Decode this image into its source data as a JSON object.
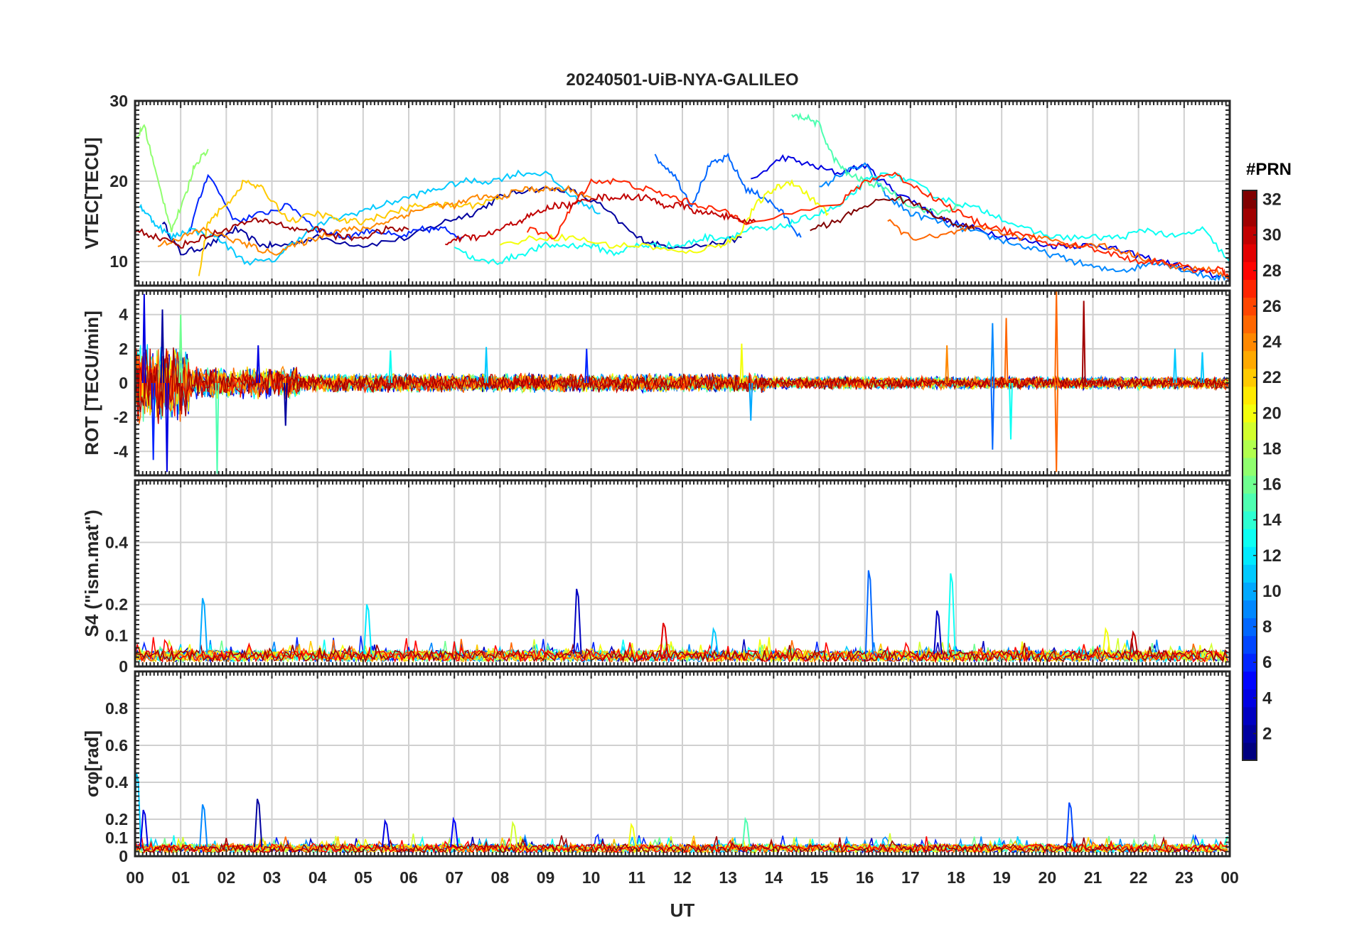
{
  "title": "20240501-UiB-NYA-GALILEO",
  "xlabel": "UT",
  "x_tick_labels": [
    "00",
    "01",
    "02",
    "03",
    "04",
    "05",
    "06",
    "07",
    "08",
    "09",
    "10",
    "11",
    "12",
    "13",
    "14",
    "15",
    "16",
    "17",
    "18",
    "19",
    "20",
    "21",
    "22",
    "23",
    "00"
  ],
  "colorbar": {
    "title": "#PRN",
    "range": [
      1,
      32
    ],
    "tick_labels": [
      "2",
      "4",
      "6",
      "8",
      "10",
      "12",
      "14",
      "16",
      "18",
      "20",
      "22",
      "24",
      "26",
      "28",
      "30",
      "32"
    ],
    "colormap": "jet"
  },
  "chart_data": [
    {
      "type": "line",
      "ylabel": "VTEC[TECU]",
      "xlim": [
        0,
        24
      ],
      "ylim": [
        7,
        30
      ],
      "y_tick_labels": [
        "10",
        "20",
        "30"
      ],
      "series": [
        {
          "prn": 2,
          "x": [
            0.6,
            1.0,
            1.6,
            2.2,
            2.8,
            3.2,
            4.0,
            5.0,
            6.0,
            6.8,
            7.4,
            8.0,
            8.6,
            9.5,
            10.2,
            11.0,
            11.5,
            12.5,
            13.3
          ],
          "y": [
            15,
            11,
            12,
            14,
            12,
            12,
            13,
            12,
            13,
            15,
            16,
            18,
            19,
            19,
            17,
            13,
            12,
            12,
            13
          ]
        },
        {
          "prn": 4,
          "x": [
            13.5,
            14.2,
            14.8,
            15.4,
            16.0,
            16.6,
            17.2,
            17.8,
            18.5,
            19.2,
            20.0,
            20.6,
            21.2,
            21.8,
            22.5,
            23.2,
            23.8
          ],
          "y": [
            20,
            23,
            22,
            21,
            22,
            19,
            17,
            15,
            14,
            13,
            12,
            12,
            12,
            11,
            10,
            9,
            8
          ]
        },
        {
          "prn": 6,
          "x": [
            1.2,
            1.6,
            2.2,
            2.8,
            3.4,
            4.0,
            4.6,
            5.2,
            5.8,
            6.3,
            6.8,
            7.2
          ],
          "y": [
            14,
            21,
            15,
            16,
            17,
            14,
            13,
            14,
            13,
            14,
            14,
            13
          ]
        },
        {
          "prn": 8,
          "x": [
            11.4,
            11.8,
            12.2,
            12.6,
            13.0,
            13.4,
            13.8,
            14.2,
            14.6
          ],
          "y": [
            23,
            21,
            17,
            22,
            23,
            19,
            18,
            16,
            13
          ]
        },
        {
          "prn": 9,
          "x": [
            15.0,
            15.5,
            16.0,
            16.5,
            17.0,
            17.6,
            18.2,
            18.8,
            19.4,
            20.0,
            20.6,
            21.2,
            21.8,
            22.4,
            23.0,
            23.6,
            24.0
          ],
          "y": [
            19,
            21,
            22,
            18,
            16,
            15,
            14,
            13,
            12,
            11,
            10,
            9,
            9,
            10,
            9,
            8,
            8
          ]
        },
        {
          "prn": 11,
          "x": [
            0.1,
            0.4,
            0.8,
            1.2,
            1.8,
            2.4,
            3.0,
            3.6,
            4.2,
            4.8,
            5.4,
            6.0,
            6.6,
            7.2,
            7.8,
            8.4,
            9.0,
            9.6,
            10.2
          ],
          "y": [
            17,
            15,
            13,
            14,
            13,
            10,
            10,
            13,
            15,
            16,
            17,
            18,
            19,
            20,
            20,
            21,
            21,
            18,
            16
          ]
        },
        {
          "prn": 13,
          "x": [
            7.0,
            7.5,
            8.0,
            8.5,
            9.0,
            9.5,
            10.0,
            10.5,
            11.0,
            11.5,
            12.0,
            12.5,
            13.0,
            13.5,
            14.0,
            14.5,
            15.0,
            15.5,
            16.0,
            16.5,
            17.0,
            17.6,
            18.2,
            18.8,
            19.5,
            20.2,
            21.0,
            21.6,
            22.2,
            22.8,
            23.4,
            24.0
          ],
          "y": [
            12,
            10,
            10,
            11,
            12,
            12,
            12,
            11,
            12,
            12,
            12,
            13,
            13,
            14,
            14,
            15,
            16,
            17,
            20,
            21,
            20,
            18,
            17,
            16,
            14,
            13,
            13,
            13,
            14,
            13,
            14,
            10
          ]
        },
        {
          "prn": 15,
          "x": [
            14.4,
            14.7,
            15.0,
            15.3,
            15.6,
            16.0,
            16.5,
            17.0,
            17.6,
            18.1
          ],
          "y": [
            28,
            28,
            27,
            23,
            21,
            20,
            19,
            17,
            16,
            17
          ]
        },
        {
          "prn": 17,
          "x": [
            0.0,
            0.2,
            0.5,
            0.8,
            1.1,
            1.3,
            1.6
          ],
          "y": [
            25,
            27,
            20,
            14,
            18,
            22,
            24
          ]
        },
        {
          "prn": 20,
          "x": [
            8.0,
            8.8,
            9.6,
            10.4,
            11.2,
            12.0,
            12.8,
            13.2,
            13.6,
            14.0,
            14.4,
            14.8,
            15.2
          ],
          "y": [
            12,
            13,
            13,
            12,
            12,
            11,
            12,
            13,
            17,
            19,
            20,
            18,
            16
          ]
        },
        {
          "prn": 22,
          "x": [
            1.4,
            1.6,
            2.0,
            2.4,
            2.8,
            3.4,
            4.0,
            4.6,
            5.0,
            5.6,
            6.2,
            6.8,
            7.4,
            8.0
          ],
          "y": [
            8,
            15,
            17,
            20,
            19,
            15,
            16,
            15,
            15,
            16,
            17,
            17,
            17,
            18
          ]
        },
        {
          "prn": 24,
          "x": [
            0.5,
            1.0,
            1.5,
            2.0,
            2.5,
            3.0,
            3.5,
            4.0,
            4.5,
            5.0,
            5.5,
            6.0,
            6.5,
            7.0,
            7.5,
            8.0,
            8.5,
            9.0,
            9.5,
            10.0
          ],
          "y": [
            12,
            13,
            14,
            13,
            12,
            11,
            12,
            13,
            14,
            14,
            15,
            16,
            17,
            17,
            18,
            18,
            19,
            19,
            19,
            18
          ]
        },
        {
          "prn": 25,
          "x": [
            16.5,
            17.0,
            17.6,
            18.2,
            18.8,
            19.4,
            20.0,
            20.6,
            21.2,
            21.8,
            22.4,
            23.0,
            23.6,
            24.0
          ],
          "y": [
            15,
            13,
            13,
            14,
            14,
            13,
            13,
            12,
            12,
            11,
            10,
            9,
            9,
            8
          ]
        },
        {
          "prn": 27,
          "x": [
            8.6,
            9.2,
            9.6,
            10.0,
            10.6,
            11.2,
            11.8,
            12.4,
            13.0,
            13.4,
            15.4,
            16.0,
            16.6,
            17.2,
            17.8,
            18.4,
            19.0,
            19.6,
            20.2,
            20.8,
            21.4,
            22.0,
            22.6,
            23.2,
            23.8,
            24.0
          ],
          "y": [
            14,
            13,
            17,
            20,
            20,
            19,
            18,
            17,
            16,
            15,
            17,
            20,
            21,
            19,
            17,
            15,
            14,
            13,
            12,
            12,
            11,
            10,
            10,
            9,
            9,
            8
          ]
        },
        {
          "prn": 30,
          "x": [
            6.8,
            7.2,
            7.6,
            8.0,
            8.4,
            8.8,
            9.2,
            9.6,
            10.0,
            10.4,
            10.8,
            11.2,
            11.6,
            12.0,
            12.4,
            12.8,
            13.2,
            13.6
          ],
          "y": [
            12,
            13,
            13,
            14,
            15,
            16,
            17,
            17,
            18,
            18,
            18,
            18,
            17,
            17,
            16,
            16,
            15,
            15
          ]
        },
        {
          "prn": 31,
          "x": [
            0.0,
            0.5,
            1.0,
            1.5,
            2.0,
            2.5,
            3.0,
            3.5,
            4.0,
            4.5,
            5.0,
            5.5,
            6.0
          ],
          "y": [
            14,
            13,
            12,
            13,
            14,
            15,
            15,
            14,
            14,
            13,
            13,
            14,
            14
          ]
        },
        {
          "prn": 32,
          "x": [
            14.8,
            15.4,
            16.0,
            16.6,
            17.2,
            17.8,
            18.4
          ],
          "y": [
            14,
            15,
            17,
            18,
            17,
            15,
            14
          ]
        }
      ]
    },
    {
      "type": "line",
      "ylabel": "ROT [TECU/min]",
      "xlim": [
        0,
        24
      ],
      "ylim": [
        -5.4,
        5.4
      ],
      "y_tick_labels": [
        "-4",
        "-2",
        "0",
        "2",
        "4"
      ],
      "noise_levels": [
        {
          "x_range": [
            0.0,
            1.2
          ],
          "amplitude": 2.5
        },
        {
          "x_range": [
            1.2,
            3.6
          ],
          "amplitude": 1.0
        },
        {
          "x_range": [
            3.6,
            13.8
          ],
          "amplitude": 0.6
        },
        {
          "x_range": [
            13.8,
            24.0
          ],
          "amplitude": 0.4
        }
      ],
      "spikes": [
        {
          "x": 0.2,
          "y": 5.2,
          "prn": 4
        },
        {
          "x": 0.4,
          "y": -4.5,
          "prn": 6
        },
        {
          "x": 0.6,
          "y": 4.3,
          "prn": 2
        },
        {
          "x": 0.7,
          "y": -5.2,
          "prn": 4
        },
        {
          "x": 1.0,
          "y": 4.0,
          "prn": 16
        },
        {
          "x": 1.8,
          "y": -5.3,
          "prn": 15
        },
        {
          "x": 2.7,
          "y": 2.2,
          "prn": 4
        },
        {
          "x": 3.3,
          "y": -2.5,
          "prn": 2
        },
        {
          "x": 5.6,
          "y": 1.9,
          "prn": 13
        },
        {
          "x": 7.7,
          "y": 2.1,
          "prn": 11
        },
        {
          "x": 9.9,
          "y": 2.0,
          "prn": 6
        },
        {
          "x": 13.3,
          "y": 2.3,
          "prn": 20
        },
        {
          "x": 13.5,
          "y": -2.2,
          "prn": 10
        },
        {
          "x": 17.8,
          "y": 2.2,
          "prn": 24
        },
        {
          "x": 18.8,
          "y": -3.9,
          "prn": 8
        },
        {
          "x": 18.8,
          "y": 3.5,
          "prn": 9
        },
        {
          "x": 19.2,
          "y": -3.3,
          "prn": 13
        },
        {
          "x": 19.1,
          "y": 3.8,
          "prn": 25
        },
        {
          "x": 20.2,
          "y": 5.4,
          "prn": 25
        },
        {
          "x": 20.2,
          "y": -5.2,
          "prn": 25
        },
        {
          "x": 20.8,
          "y": 4.8,
          "prn": 31
        },
        {
          "x": 22.8,
          "y": 2.0,
          "prn": 11
        },
        {
          "x": 23.4,
          "y": 1.8,
          "prn": 11
        }
      ]
    },
    {
      "type": "line",
      "ylabel": "S4 (\"ism.mat\")",
      "xlim": [
        0,
        24
      ],
      "ylim": [
        0,
        0.6
      ],
      "y_tick_labels": [
        "0",
        "0.1",
        "0.2",
        "0.4"
      ],
      "baseline": 0.04,
      "spikes": [
        {
          "x": 1.5,
          "y": 0.22,
          "prn": 10
        },
        {
          "x": 5.1,
          "y": 0.2,
          "prn": 12
        },
        {
          "x": 9.7,
          "y": 0.25,
          "prn": 3
        },
        {
          "x": 11.6,
          "y": 0.14,
          "prn": 29
        },
        {
          "x": 12.7,
          "y": 0.12,
          "prn": 11
        },
        {
          "x": 16.1,
          "y": 0.31,
          "prn": 8
        },
        {
          "x": 17.6,
          "y": 0.18,
          "prn": 3
        },
        {
          "x": 17.9,
          "y": 0.3,
          "prn": 13
        },
        {
          "x": 21.3,
          "y": 0.12,
          "prn": 20
        },
        {
          "x": 21.9,
          "y": 0.11,
          "prn": 30
        }
      ]
    },
    {
      "type": "line",
      "ylabel": "σφ[rad]",
      "xlim": [
        0,
        24
      ],
      "ylim": [
        0,
        1.0
      ],
      "y_tick_labels": [
        "0",
        "0.1",
        "0.2",
        "0.4",
        "0.6",
        "0.8"
      ],
      "baseline": 0.05,
      "spikes": [
        {
          "x": 0.05,
          "y": 0.45,
          "prn": 11
        },
        {
          "x": 0.2,
          "y": 0.25,
          "prn": 4
        },
        {
          "x": 1.5,
          "y": 0.28,
          "prn": 9
        },
        {
          "x": 2.7,
          "y": 0.31,
          "prn": 2
        },
        {
          "x": 5.5,
          "y": 0.19,
          "prn": 4
        },
        {
          "x": 7.0,
          "y": 0.2,
          "prn": 5
        },
        {
          "x": 8.3,
          "y": 0.18,
          "prn": 19
        },
        {
          "x": 10.9,
          "y": 0.17,
          "prn": 20
        },
        {
          "x": 13.4,
          "y": 0.2,
          "prn": 15
        },
        {
          "x": 20.5,
          "y": 0.29,
          "prn": 7
        }
      ]
    }
  ]
}
